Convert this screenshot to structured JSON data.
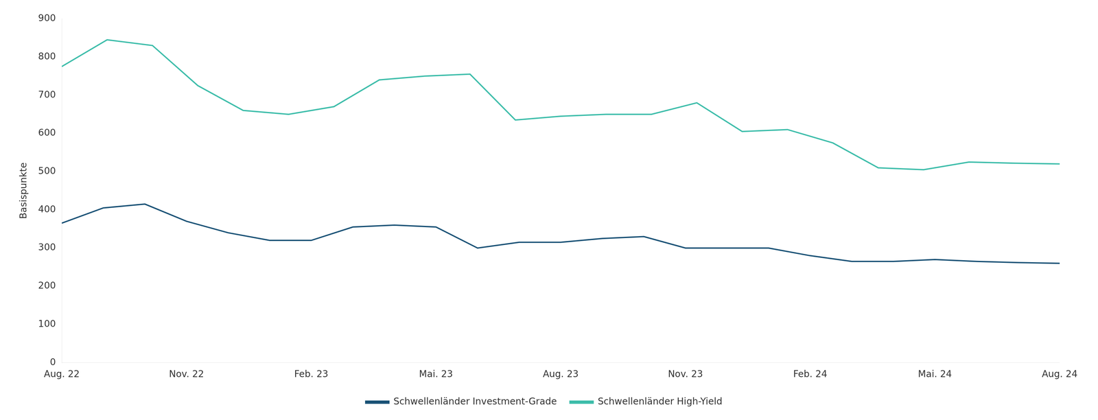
{
  "chart_data": {
    "type": "line",
    "ylabel": "Basispunkte",
    "xlim": [
      0,
      24
    ],
    "xticks": [
      {
        "value": 0,
        "label": "Aug. 22"
      },
      {
        "value": 3,
        "label": "Nov. 22"
      },
      {
        "value": 6,
        "label": "Feb. 23"
      },
      {
        "value": 9,
        "label": "Mai. 23"
      },
      {
        "value": 12,
        "label": "Aug. 23"
      },
      {
        "value": 15,
        "label": "Nov. 23"
      },
      {
        "value": 18,
        "label": "Feb. 24"
      },
      {
        "value": 21,
        "label": "Mai. 24"
      },
      {
        "value": 24,
        "label": "Aug. 24"
      }
    ],
    "ylim": [
      0,
      900
    ],
    "yticks": [
      0,
      100,
      200,
      300,
      400,
      500,
      600,
      700,
      800,
      900
    ],
    "grid": false,
    "legend": "bottom",
    "series": [
      {
        "name": "Schwellenländer Investment-Grade",
        "color": "#1a5276",
        "x": [
          0,
          1,
          2,
          3,
          4,
          5,
          6,
          7,
          8,
          9,
          10,
          11,
          12,
          13,
          14,
          15,
          16,
          17,
          18,
          19,
          20,
          21,
          22,
          23,
          24
        ],
        "values": [
          365,
          405,
          415,
          370,
          340,
          320,
          320,
          355,
          360,
          355,
          300,
          315,
          315,
          325,
          330,
          300,
          300,
          300,
          280,
          265,
          265,
          270,
          265,
          262,
          260
        ]
      },
      {
        "name": "Schwellenländer High-Yield",
        "color": "#3dbdaa",
        "x": [
          0,
          1.090909090909,
          2.181818181818,
          3.272727272727,
          4.363636363636,
          5.454545454545,
          6.545454545455,
          7.636363636364,
          8.727272727273,
          9.818181818182,
          10.909090909091,
          12,
          13.090909090909,
          14.181818181818,
          15.272727272727,
          16.363636363636,
          17.454545454545,
          18.545454545455,
          19.636363636364,
          20.727272727273,
          21.818181818182,
          22.909090909091,
          24
        ],
        "values": [
          775,
          845,
          830,
          725,
          660,
          650,
          670,
          740,
          750,
          755,
          635,
          645,
          650,
          650,
          680,
          605,
          610,
          575,
          510,
          505,
          525,
          522,
          520
        ]
      }
    ]
  }
}
